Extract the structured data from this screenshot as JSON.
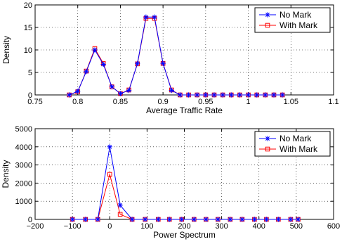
{
  "chart_data": [
    {
      "type": "line",
      "xlabel": "Average Traffic Rate",
      "ylabel": "Density",
      "xlim": [
        0.75,
        1.1
      ],
      "ylim": [
        0,
        20
      ],
      "xticks": [
        "0.75",
        "0.8",
        "0.85",
        "0.9",
        "0.95",
        "1",
        "1.05",
        "1.1"
      ],
      "yticks": [
        "0",
        "5",
        "10",
        "15",
        "20"
      ],
      "grid": true,
      "legend_position": "top-right",
      "x": [
        0.79,
        0.8,
        0.81,
        0.82,
        0.83,
        0.84,
        0.85,
        0.86,
        0.87,
        0.88,
        0.89,
        0.9,
        0.91,
        0.92,
        0.93,
        0.94,
        0.95,
        0.96,
        0.97,
        0.98,
        0.99,
        1.0,
        1.01,
        1.02,
        1.03,
        1.04
      ],
      "series": [
        {
          "name": "No Mark",
          "color": "#0000ff",
          "marker": "star",
          "values": [
            0,
            0.8,
            5.2,
            10.0,
            6.8,
            1.8,
            0.3,
            1.0,
            7.0,
            17.3,
            17.3,
            7.0,
            1.0,
            0,
            0,
            0,
            0,
            0,
            0,
            0,
            0,
            0,
            0,
            0,
            0,
            0
          ]
        },
        {
          "name": "With Mark",
          "color": "#ff0000",
          "marker": "square",
          "values": [
            0,
            0.7,
            5.3,
            10.3,
            7.0,
            1.8,
            0.3,
            1.1,
            6.9,
            17.0,
            17.0,
            7.0,
            1.1,
            0,
            0,
            0,
            0,
            0,
            0,
            0,
            0,
            0,
            0,
            0,
            0,
            0
          ]
        }
      ]
    },
    {
      "type": "line",
      "xlabel": "Power Spectrum",
      "ylabel": "Density",
      "xlim": [
        -200,
        600
      ],
      "ylim": [
        0,
        5000
      ],
      "xticks": [
        "−200",
        "−100",
        "0",
        "100",
        "200",
        "300",
        "400",
        "500",
        "600"
      ],
      "yticks": [
        "0",
        "1000",
        "2000",
        "3000",
        "4000",
        "5000"
      ],
      "grid": true,
      "legend_position": "top-right",
      "x": [
        -100,
        -65,
        -32,
        0,
        28,
        60,
        95,
        130,
        160,
        193,
        226,
        258,
        290,
        323,
        355,
        388,
        420,
        452,
        485,
        505
      ],
      "series": [
        {
          "name": "No Mark",
          "color": "#0000ff",
          "marker": "star",
          "values": [
            0,
            0,
            0,
            4000,
            780,
            0,
            0,
            0,
            0,
            0,
            0,
            0,
            0,
            0,
            0,
            0,
            0,
            0,
            0,
            0
          ]
        },
        {
          "name": "With Mark",
          "color": "#ff0000",
          "marker": "square",
          "values": [
            0,
            0,
            0,
            2480,
            280,
            0,
            0,
            0,
            0,
            0,
            0,
            0,
            0,
            0,
            0,
            0,
            0,
            0,
            0,
            0
          ]
        }
      ]
    }
  ]
}
